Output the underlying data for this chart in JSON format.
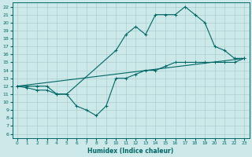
{
  "xlabel": "Humidex (Indice chaleur)",
  "background_color": "#cce8e8",
  "grid_color": "#aacfcf",
  "line_color": "#006666",
  "xlim": [
    -0.5,
    23.5
  ],
  "ylim": [
    5.5,
    22.5
  ],
  "xticks": [
    0,
    1,
    2,
    3,
    4,
    5,
    6,
    7,
    8,
    9,
    10,
    11,
    12,
    13,
    14,
    15,
    16,
    17,
    18,
    19,
    20,
    21,
    22,
    23
  ],
  "yticks": [
    6,
    7,
    8,
    9,
    10,
    11,
    12,
    13,
    14,
    15,
    16,
    17,
    18,
    19,
    20,
    21,
    22
  ],
  "line1_x": [
    0,
    1,
    2,
    3,
    4,
    5,
    6,
    7,
    8,
    9,
    10,
    11,
    12,
    13,
    14,
    15,
    16,
    17,
    18,
    19,
    20,
    21,
    22,
    23
  ],
  "line1_y": [
    12,
    12,
    12,
    12,
    11,
    11,
    9.5,
    9,
    8.3,
    9.5,
    13,
    13,
    13.5,
    14,
    14,
    14.5,
    15,
    15,
    15,
    15,
    15,
    15,
    15,
    15.5
  ],
  "line2_x": [
    0,
    1,
    2,
    3,
    4,
    5,
    10,
    11,
    12,
    13,
    14,
    15,
    16,
    17,
    18,
    19,
    20,
    21,
    22,
    23
  ],
  "line2_y": [
    12,
    11.8,
    11.5,
    11.5,
    11,
    11,
    16.5,
    18.5,
    19.5,
    18.5,
    21,
    21,
    21,
    22,
    21,
    20,
    17,
    16.5,
    15.5,
    15.5
  ],
  "line3_x": [
    0,
    23
  ],
  "line3_y": [
    12,
    15.5
  ]
}
